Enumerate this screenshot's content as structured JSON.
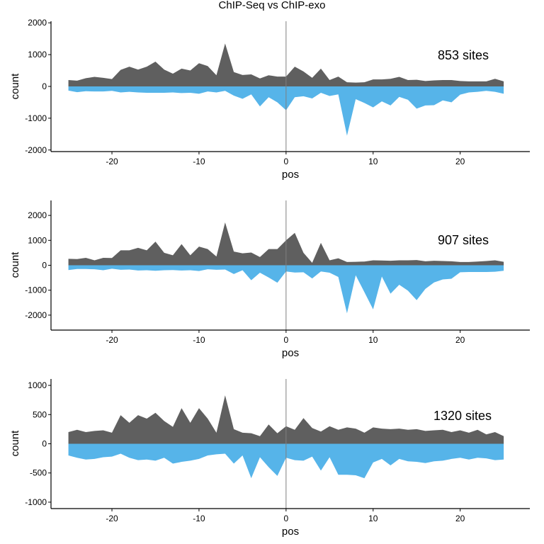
{
  "figure_title": "ChIP-Seq vs ChIP-exo",
  "chart_data": [
    {
      "type": "area",
      "xlabel": "pos",
      "ylabel": "count",
      "annotation": "853 sites",
      "xlim": [
        -27,
        28
      ],
      "ylim": [
        -2050,
        2050
      ],
      "xticks": [
        -20,
        -10,
        0,
        10,
        20
      ],
      "yticks": [
        -2000,
        -1000,
        0,
        1000,
        2000
      ],
      "vline_x": 0,
      "colors": {
        "positive": "#5f5f5f",
        "negative": "#56b4e9"
      },
      "x": [
        -25,
        -24,
        -23,
        -22,
        -21,
        -20,
        -19,
        -18,
        -17,
        -16,
        -15,
        -14,
        -13,
        -12,
        -11,
        -10,
        -9,
        -8,
        -7,
        -6,
        -5,
        -4,
        -3,
        -2,
        -1,
        0,
        1,
        2,
        3,
        4,
        5,
        6,
        7,
        8,
        9,
        10,
        11,
        12,
        13,
        14,
        15,
        16,
        17,
        18,
        19,
        20,
        21,
        22,
        23,
        24,
        25
      ],
      "series": [
        {
          "values": [
            200,
            180,
            260,
            300,
            270,
            230,
            520,
            620,
            530,
            620,
            780,
            530,
            400,
            560,
            500,
            730,
            640,
            350,
            1350,
            450,
            360,
            380,
            250,
            350,
            310,
            310,
            620,
            470,
            270,
            560,
            200,
            310,
            130,
            120,
            130,
            220,
            220,
            240,
            300,
            200,
            210,
            170,
            190,
            200,
            200,
            170,
            160,
            160,
            160,
            240,
            160
          ]
        },
        {
          "values": [
            -130,
            -180,
            -150,
            -160,
            -160,
            -140,
            -190,
            -170,
            -190,
            -200,
            -200,
            -200,
            -190,
            -210,
            -200,
            -230,
            -160,
            -190,
            -140,
            -290,
            -390,
            -250,
            -630,
            -340,
            -500,
            -750,
            -340,
            -310,
            -380,
            -200,
            -300,
            -250,
            -1550,
            -400,
            -520,
            -660,
            -470,
            -600,
            -330,
            -420,
            -700,
            -600,
            -590,
            -440,
            -500,
            -260,
            -190,
            -170,
            -140,
            -170,
            -230
          ]
        }
      ]
    },
    {
      "type": "area",
      "xlabel": "pos",
      "ylabel": "count",
      "annotation": "907 sites",
      "xlim": [
        -27,
        28
      ],
      "ylim": [
        -2600,
        2600
      ],
      "xticks": [
        -20,
        -10,
        0,
        10,
        20
      ],
      "yticks": [
        -2000,
        -1000,
        0,
        1000,
        2000
      ],
      "vline_x": 0,
      "colors": {
        "positive": "#5f5f5f",
        "negative": "#56b4e9"
      },
      "x": [
        -25,
        -24,
        -23,
        -22,
        -21,
        -20,
        -19,
        -18,
        -17,
        -16,
        -15,
        -14,
        -13,
        -12,
        -11,
        -10,
        -9,
        -8,
        -7,
        -6,
        -5,
        -4,
        -3,
        -2,
        -1,
        0,
        1,
        2,
        3,
        4,
        5,
        6,
        7,
        8,
        9,
        10,
        11,
        12,
        13,
        14,
        15,
        16,
        17,
        18,
        19,
        20,
        21,
        22,
        23,
        24,
        25
      ],
      "series": [
        {
          "values": [
            260,
            250,
            300,
            200,
            300,
            290,
            600,
            600,
            700,
            600,
            950,
            500,
            400,
            850,
            400,
            750,
            650,
            350,
            1720,
            550,
            480,
            510,
            330,
            650,
            650,
            1000,
            1300,
            500,
            100,
            900,
            200,
            280,
            130,
            140,
            150,
            200,
            190,
            180,
            200,
            200,
            210,
            160,
            180,
            170,
            160,
            130,
            130,
            150,
            170,
            200,
            140
          ]
        },
        {
          "values": [
            -190,
            -150,
            -150,
            -160,
            -200,
            -140,
            -180,
            -170,
            -210,
            -200,
            -220,
            -200,
            -190,
            -210,
            -200,
            -230,
            -160,
            -180,
            -170,
            -350,
            -200,
            -600,
            -300,
            -490,
            -700,
            -250,
            -290,
            -280,
            -530,
            -250,
            -300,
            -470,
            -1930,
            -400,
            -1080,
            -1770,
            -450,
            -1140,
            -780,
            -1020,
            -1400,
            -950,
            -690,
            -570,
            -540,
            -280,
            -270,
            -270,
            -270,
            -260,
            -220
          ]
        }
      ]
    },
    {
      "type": "area",
      "xlabel": "pos",
      "ylabel": "count",
      "annotation": "1320 sites",
      "xlim": [
        -27,
        28
      ],
      "ylim": [
        -1110,
        1110
      ],
      "xticks": [
        -20,
        -10,
        0,
        10,
        20
      ],
      "yticks": [
        -1000,
        -500,
        0,
        500,
        1000
      ],
      "vline_x": 0,
      "colors": {
        "positive": "#5f5f5f",
        "negative": "#56b4e9"
      },
      "x": [
        -25,
        -24,
        -23,
        -22,
        -21,
        -20,
        -19,
        -18,
        -17,
        -16,
        -15,
        -14,
        -13,
        -12,
        -11,
        -10,
        -9,
        -8,
        -7,
        -6,
        -5,
        -4,
        -3,
        -2,
        -1,
        0,
        1,
        2,
        3,
        4,
        5,
        6,
        7,
        8,
        9,
        10,
        11,
        12,
        13,
        14,
        15,
        16,
        17,
        18,
        19,
        20,
        21,
        22,
        23,
        24,
        25
      ],
      "series": [
        {
          "values": [
            200,
            240,
            200,
            220,
            230,
            190,
            490,
            360,
            490,
            430,
            530,
            390,
            290,
            610,
            360,
            610,
            430,
            190,
            830,
            250,
            190,
            180,
            130,
            330,
            180,
            300,
            240,
            440,
            270,
            210,
            300,
            240,
            280,
            260,
            190,
            280,
            260,
            250,
            260,
            240,
            250,
            220,
            230,
            240,
            200,
            230,
            190,
            240,
            160,
            200,
            130
          ]
        },
        {
          "values": [
            -200,
            -240,
            -270,
            -260,
            -230,
            -220,
            -170,
            -240,
            -280,
            -270,
            -290,
            -240,
            -340,
            -310,
            -290,
            -260,
            -200,
            -180,
            -170,
            -340,
            -200,
            -590,
            -230,
            -400,
            -550,
            -240,
            -280,
            -290,
            -220,
            -460,
            -230,
            -530,
            -530,
            -540,
            -590,
            -320,
            -260,
            -370,
            -260,
            -300,
            -310,
            -330,
            -300,
            -290,
            -260,
            -240,
            -270,
            -240,
            -250,
            -280,
            -270
          ]
        }
      ]
    }
  ]
}
